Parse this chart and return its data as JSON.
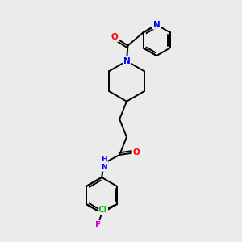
{
  "background_color": "#ebebeb",
  "bond_color": "#000000",
  "atom_colors": {
    "N": "#0000ff",
    "O": "#ff0000",
    "Cl": "#00bb00",
    "F": "#cc00cc",
    "H": "#000000"
  },
  "figsize": [
    3.0,
    3.0
  ],
  "dpi": 100
}
